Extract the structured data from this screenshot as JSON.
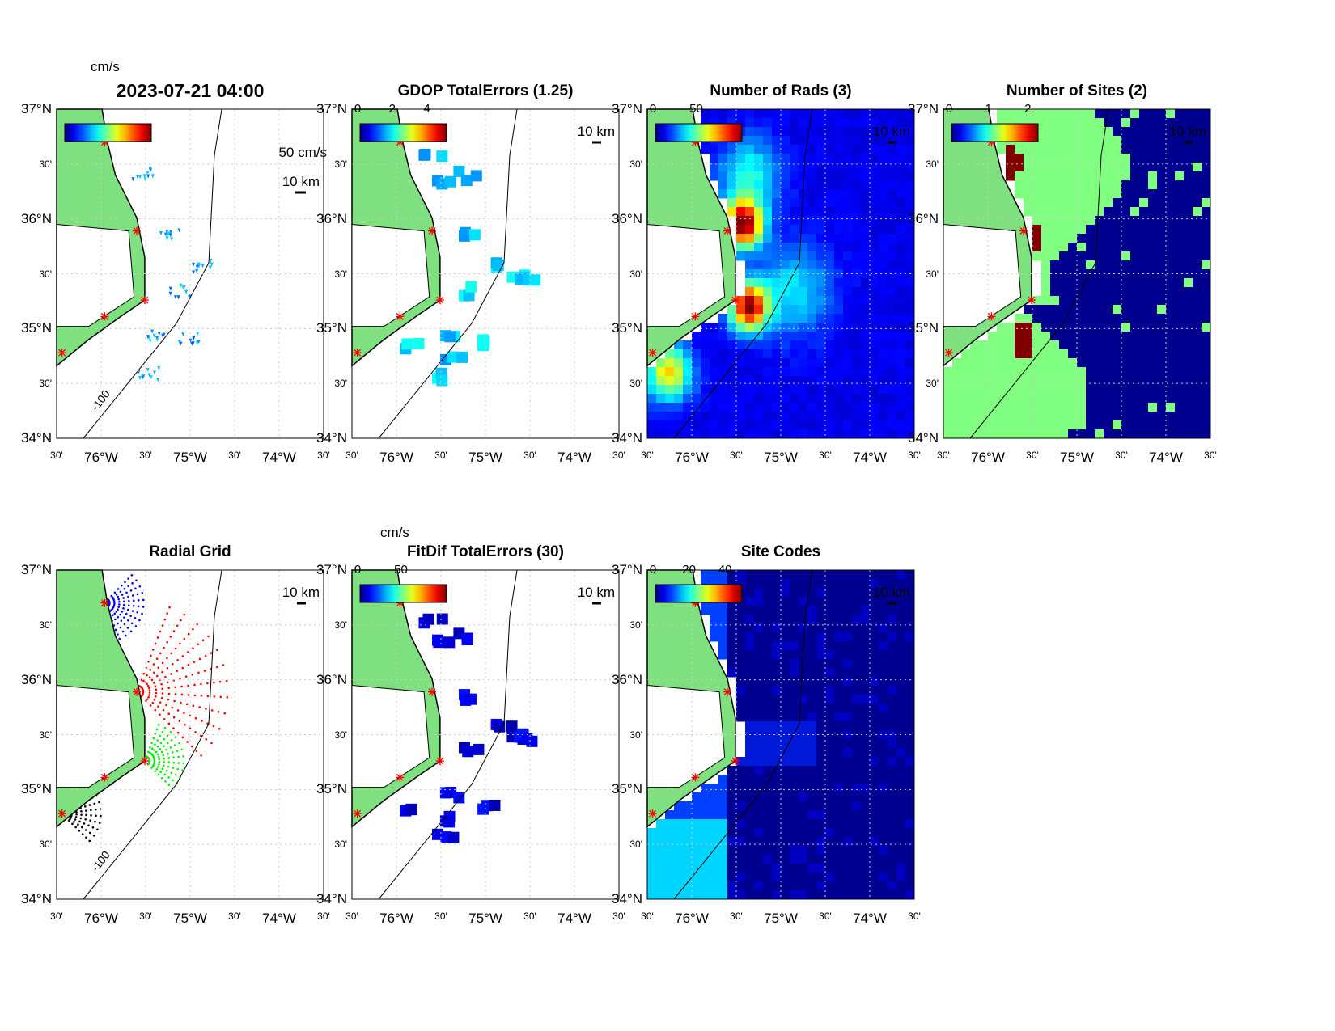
{
  "figure": {
    "lat_ticks": [
      "37°N",
      "30'",
      "36°N",
      "30'",
      "35°N",
      "30'",
      "34°N"
    ],
    "lon_ticks": [
      "30'",
      "76°W",
      "30'",
      "75°W",
      "30'",
      "74°W",
      "30'"
    ],
    "lat_range": [
      34,
      37
    ],
    "lon_range": [
      -76.5,
      -73.5
    ],
    "scale_label": "10 km",
    "isobath_label": "-100",
    "site_color": "#ff0000",
    "land_color": "#7fe07f"
  },
  "panels": [
    {
      "id": "totals",
      "title": "2023-07-21 04:00",
      "unit": "cm/s",
      "velocity_scale": "50 cm/s",
      "cbar_ticks": [],
      "type": "vectors"
    },
    {
      "id": "gdop",
      "title": "GDOP TotalErrors (1.25)",
      "cbar_ticks": [
        "0",
        "2",
        "4"
      ],
      "type": "gdop"
    },
    {
      "id": "nrads",
      "title": "Number of Rads (3)",
      "cbar_ticks": [
        "0",
        "50"
      ],
      "type": "rads"
    },
    {
      "id": "nsites",
      "title": "Number of Sites (2)",
      "cbar_ticks": [
        "0",
        "1",
        "2"
      ],
      "type": "sites"
    },
    {
      "id": "radgrid",
      "title": "Radial Grid",
      "cbar_ticks": [],
      "type": "grid",
      "nocbar": true
    },
    {
      "id": "fitdif",
      "title": "FitDif TotalErrors (30)",
      "unit": "cm/s",
      "cbar_ticks": [
        "0",
        "50"
      ],
      "type": "fitdif"
    },
    {
      "id": "sitecodes",
      "title": "Site Codes",
      "cbar_ticks": [
        "0",
        "20",
        "40"
      ],
      "type": "codes"
    }
  ]
}
